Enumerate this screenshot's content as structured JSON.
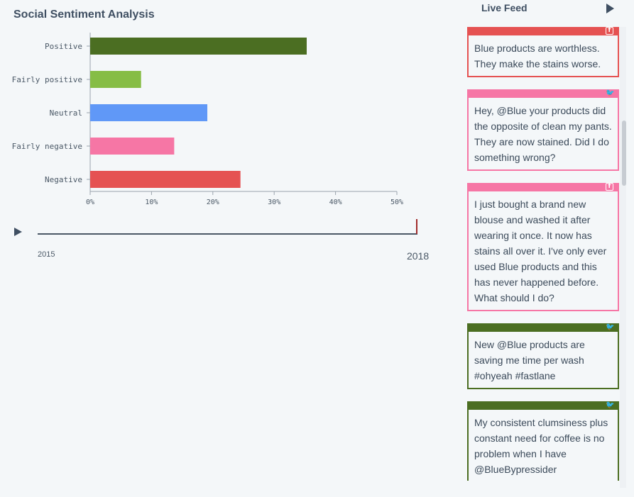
{
  "title": "Social Sentiment Analysis",
  "chart_data": {
    "type": "bar",
    "orientation": "horizontal",
    "title": "Social Sentiment Analysis",
    "categories": [
      "Positive",
      "Fairly positive",
      "Neutral",
      "Fairly negative",
      "Negative"
    ],
    "values": [
      35.3,
      8.3,
      19.1,
      13.7,
      24.5
    ],
    "colors": [
      "#4b6e22",
      "#86bd45",
      "#6098f7",
      "#f676a5",
      "#e55252"
    ],
    "xticks": [
      "0%",
      "10%",
      "20%",
      "30%",
      "40%",
      "50%"
    ],
    "xlim": [
      0,
      50
    ],
    "xlabel": "",
    "ylabel": ""
  },
  "timeline": {
    "start_year": "2015",
    "end_year": "2018"
  },
  "live_feed": {
    "header": "Live Feed",
    "items": [
      {
        "source": "facebook",
        "icon": "facebook-icon",
        "glyph": "f",
        "color": "#e55252",
        "text": "Blue products are worthless. They make the stains worse."
      },
      {
        "source": "twitter",
        "icon": "twitter-icon",
        "glyph": "🐦",
        "color": "#f676a5",
        "text": "Hey, @Blue your products did the opposite of clean my pants. They are now stained. Did I do something wrong?"
      },
      {
        "source": "facebook",
        "icon": "facebook-icon",
        "glyph": "f",
        "color": "#f676a5",
        "text": "I just bought a brand new blouse and washed it after wearing it once. It now has stains all over it. I've only ever used Blue products and this has never happened before. What should I do?"
      },
      {
        "source": "twitter",
        "icon": "twitter-icon",
        "glyph": "🐦",
        "color": "#4b6e22",
        "text": "New @Blue products are saving me time per wash #ohyeah #fastlane"
      },
      {
        "source": "twitter",
        "icon": "twitter-icon",
        "glyph": "🐦",
        "color": "#4b6e22",
        "text": "My consistent clumsiness plus constant need for coffee is no problem when I have @BlueBypressider"
      }
    ]
  }
}
